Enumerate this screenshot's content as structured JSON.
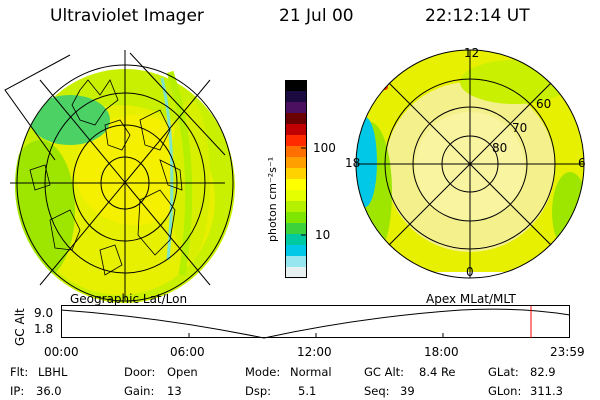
{
  "header": {
    "instrument": "Ultraviolet Imager",
    "date": "21 Jul 00",
    "time": "22:12:14 UT"
  },
  "colorbar": {
    "unit": "photon cm⁻²s⁻¹",
    "tick_100": "100",
    "tick_10": "10",
    "colors": [
      "#000000",
      "#1a0a40",
      "#4b1060",
      "#6a0000",
      "#c00000",
      "#ff2a00",
      "#ff7000",
      "#ffa000",
      "#ffd200",
      "#ffff00",
      "#e6ff00",
      "#b4f000",
      "#7ee600",
      "#3cd23c",
      "#00c8a0",
      "#00c8e6",
      "#96e6f0",
      "#e6f0f0"
    ]
  },
  "geo_panel": {
    "label": "Geographic Lat/Lon"
  },
  "polar_panel": {
    "label": "Apex MLat/MLT",
    "mlt_12": "12",
    "mlt_18": "18",
    "mlt_6": "6",
    "mlt_0": "0",
    "lat_60": "60",
    "lat_70": "70",
    "lat_80": "80"
  },
  "altitude_plot": {
    "ylabel": "GC Alt",
    "ytick_top": "9.0",
    "ytick_bottom": "1.8",
    "xticks": [
      "00:00",
      "06:00",
      "12:00",
      "18:00",
      "23:59"
    ]
  },
  "info": {
    "flt_label": "Flt:",
    "flt_value": "LBHL",
    "ip_label": "IP:",
    "ip_value": "36.0",
    "door_label": "Door:",
    "door_value": "Open",
    "gain_label": "Gain:",
    "gain_value": "13",
    "mode_label": "Mode:",
    "mode_value": "Normal",
    "dsp_label": "Dsp:",
    "dsp_value": "5.1",
    "gcalt_label": "GC Alt:",
    "gcalt_value": "8.4 Re",
    "seq_label": "Seq:",
    "seq_value": "39",
    "glat_label": "GLat:",
    "glat_value": "82.9",
    "glon_label": "GLon:",
    "glon_value": "311.3"
  }
}
